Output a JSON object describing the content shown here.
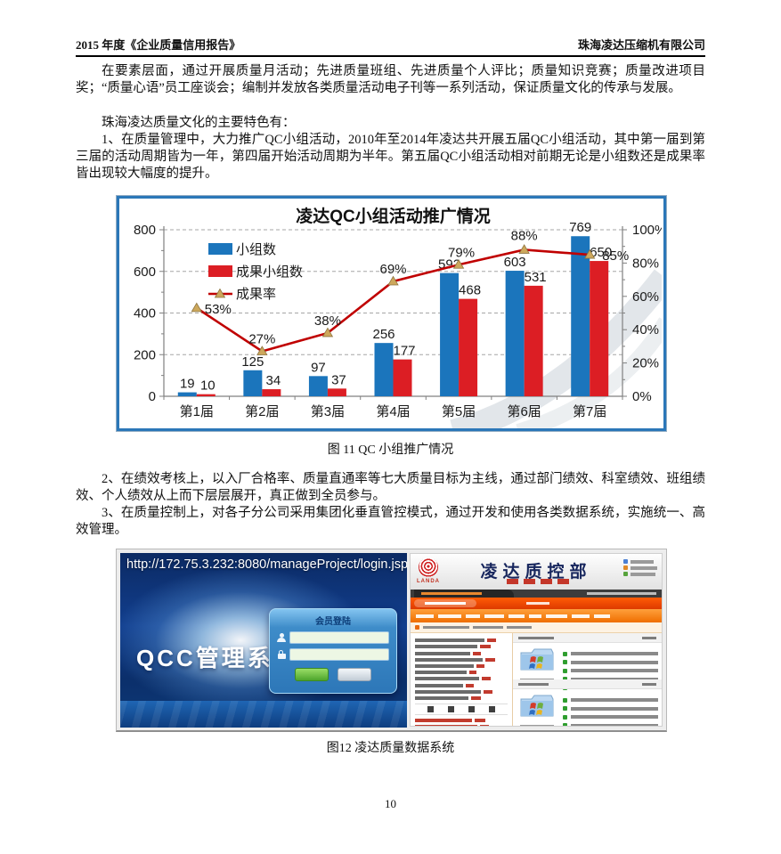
{
  "page": {
    "header_left": "2015 年度《企业质量信用报告》",
    "header_right": "珠海凌达压缩机有限公司",
    "page_number": "10"
  },
  "paragraphs": {
    "p1": "在要素层面，通过开展质量月活动；先进质量班组、先进质量个人评比；质量知识竞赛；质量改进项目奖；“质量心语”员工座谈会；编制并发放各类质量活动电子刊等一系列活动，保证质量文化的传承与发展。",
    "p2": "珠海凌达质量文化的主要特色有：",
    "p3": "1、在质量管理中，大力推广QC小组活动，2010年至2014年凌达共开展五届QC小组活动，其中第一届到第三届的活动周期皆为一年，第四届开始活动周期为半年。第五届QC小组活动相对前期无论是小组数还是成果率皆出现较大幅度的提升。",
    "p4": "2、在绩效考核上，以入厂合格率、质量直通率等七大质量目标为主线，通过部门绩效、科室绩效、班组绩效、个人绩效从上而下层层展开，真正做到全员参与。",
    "p5": "3、在质量控制上，对各子分公司采用集团化垂直管控模式，通过开发和使用各类数据系统，实施统一、高效管理。"
  },
  "captions": {
    "fig11": "图 11  QC 小组推广情况",
    "fig12": "图12 凌达质量数据系统"
  },
  "chart_data": {
    "type": "bar+line",
    "title": "凌达QC小组活动推广情况",
    "categories": [
      "第1届",
      "第2届",
      "第3届",
      "第4届",
      "第5届",
      "第6届",
      "第7届"
    ],
    "series": [
      {
        "name": "小组数",
        "type": "bar",
        "color": "#1B75BC",
        "values": [
          19,
          125,
          97,
          256,
          592,
          603,
          769
        ]
      },
      {
        "name": "成果小组数",
        "type": "bar",
        "color": "#DC1E24",
        "values": [
          10,
          34,
          37,
          177,
          468,
          531,
          650
        ]
      },
      {
        "name": "成果率",
        "type": "line",
        "color": "#C00000",
        "marker_color": "#CDA85C",
        "values_pct": [
          53,
          27,
          38,
          69,
          79,
          88,
          85
        ]
      }
    ],
    "left_axis": {
      "min": 0,
      "max": 800,
      "ticks": [
        "0",
        "200",
        "400",
        "600",
        "800"
      ]
    },
    "right_axis": {
      "min": 0,
      "max": 100,
      "ticks": [
        "0%",
        "20%",
        "40%",
        "60%",
        "80%",
        "100%"
      ]
    },
    "grid": true,
    "legend_position": "top-left"
  },
  "figure12": {
    "login_screen": {
      "url": "http://172.75.3.232:8080/manageProject/login.jsp",
      "system_title": "QCC管理系统",
      "panel_title": "会员登陆"
    },
    "portal": {
      "title": "凌达质控部",
      "logo_text": "LANDA"
    }
  }
}
